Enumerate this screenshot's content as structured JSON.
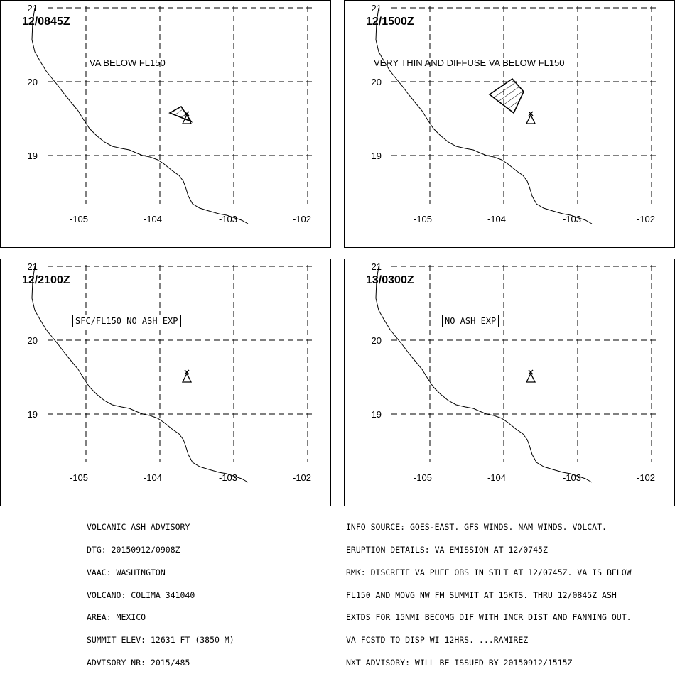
{
  "panels": [
    {
      "time": "12/0845Z",
      "label": "VA BELOW FL150",
      "label_boxed": false,
      "ash_area": "small"
    },
    {
      "time": "12/1500Z",
      "label": "VERY THIN AND DIFFUSE VA BELOW FL150",
      "label_boxed": false,
      "ash_area": "large"
    },
    {
      "time": "12/2100Z",
      "label": "SFC/FL150 NO ASH EXP",
      "label_boxed": true,
      "ash_area": "none"
    },
    {
      "time": "13/0300Z",
      "label": "NO ASH EXP",
      "label_boxed": true,
      "ash_area": "none"
    }
  ],
  "grid": {
    "lat_labels": [
      "21",
      "20",
      "19"
    ],
    "lon_labels": [
      "-105",
      "-104",
      "-103",
      "-102"
    ]
  },
  "volcano_icon": "volcano-triangle-icon",
  "advisory_left": [
    "VOLCANIC ASH ADVISORY",
    "DTG: 20150912/0908Z",
    "VAAC: WASHINGTON",
    "VOLCANO: COLIMA 341040",
    "AREA: MEXICO",
    "SUMMIT ELEV: 12631 FT (3850 M)",
    "ADVISORY NR: 2015/485"
  ],
  "advisory_right": [
    "INFO SOURCE: GOES-EAST. GFS WINDS. NAM WINDS. VOLCAT.",
    "ERUPTION DETAILS: VA EMISSION AT 12/0745Z",
    "RMK: DISCRETE VA PUFF OBS IN STLT AT 12/0745Z. VA IS BELOW",
    "FL150 AND MOVG NW FM SUMMIT AT 15KTS. THRU 12/0845Z ASH",
    "EXTDS FOR 15NMI BECOMG DIF WITH INCR DIST AND FANNING OUT.",
    "VA FCSTD TO DISP WI 12HRS. ...RAMIREZ",
    "NXT ADVISORY: WILL BE ISSUED BY 20150912/1515Z"
  ]
}
